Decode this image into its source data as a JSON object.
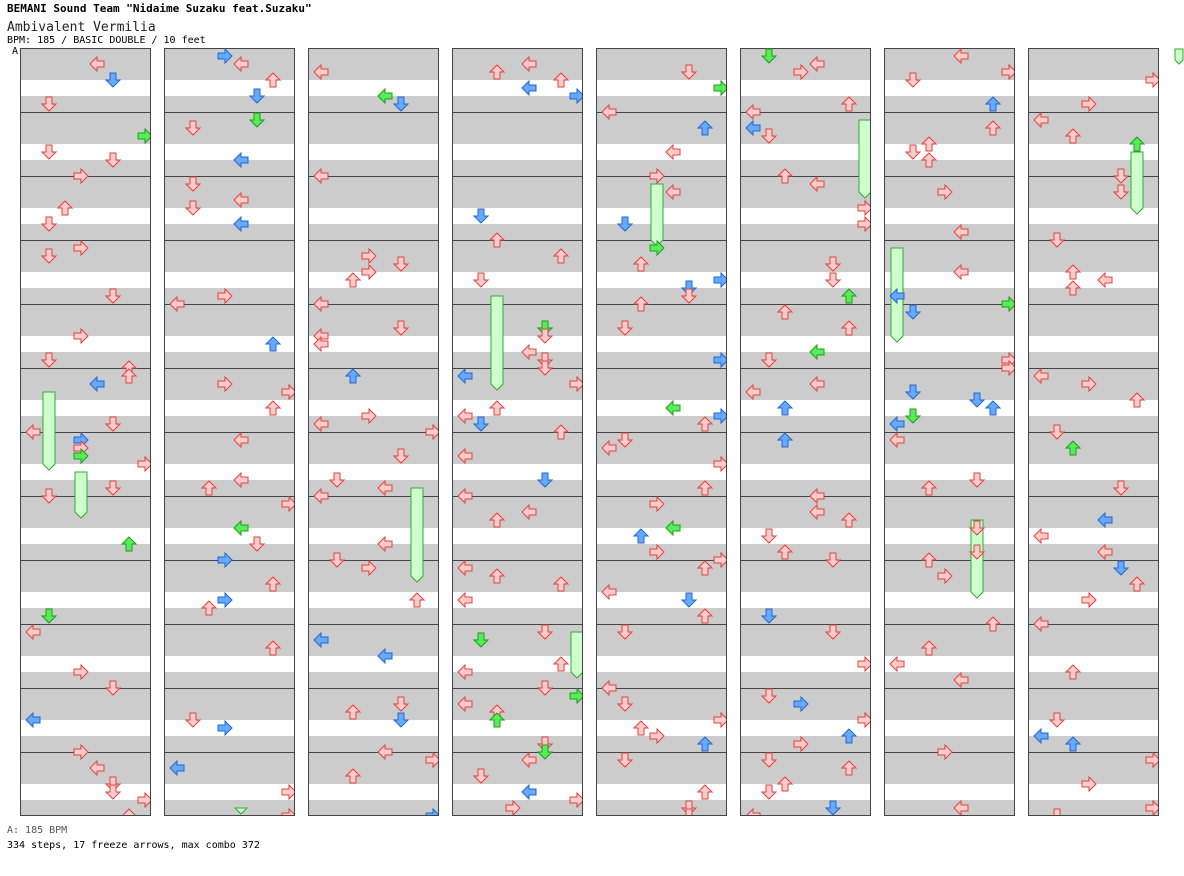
{
  "header": {
    "artist": "BEMANI Sound Team \"Nidaime Suzaku feat.Suzaku\"",
    "title": "Ambivalent Vermilia",
    "meta": "BPM: 185 / BASIC DOUBLE / 10 feet",
    "marker": "A"
  },
  "footer": {
    "bpm_line": "A: 185 BPM",
    "stats": "334 steps, 17 freeze arrows, max combo 372"
  },
  "colors": {
    "stripe": "#cccccc",
    "note_red_fill": "#ffcccc",
    "note_red_stroke": "#e04040",
    "note_blue_fill": "#66aaff",
    "note_blue_stroke": "#2266cc",
    "note_green_fill": "#55ee55",
    "note_green_stroke": "#229922",
    "freeze_fill": "#ccffcc",
    "freeze_stroke": "#33aa33"
  },
  "chart": {
    "columns": 8,
    "measures_per_column": 12,
    "lanes": 8
  }
}
